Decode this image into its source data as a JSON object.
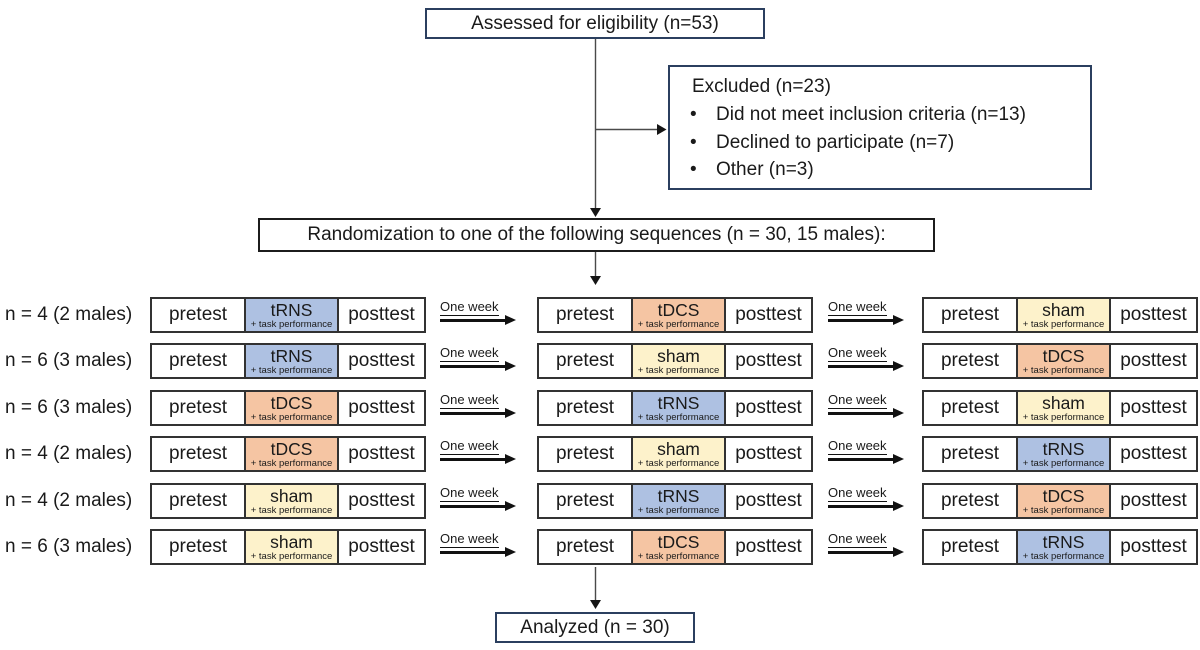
{
  "flow": {
    "assessed": "Assessed for eligibility (n=53)",
    "excluded": {
      "title": "Excluded (n=23)",
      "items": [
        "Did not meet inclusion criteria (n=13)",
        "Declined to participate (n=7)",
        "Other (n=3)"
      ]
    },
    "randomization": "Randomization to one of the following sequences (n = 30, 15 males):",
    "analyzed": "Analyzed (n = 30)"
  },
  "labels": {
    "pretest": "pretest",
    "posttest": "posttest",
    "task_note": "+ task performance",
    "one_week": "One week"
  },
  "conditions": {
    "tRNS": {
      "label": "tRNS",
      "color": "#aec1e2"
    },
    "tDCS": {
      "label": "tDCS",
      "color": "#f5c5a3"
    },
    "sham": {
      "label": "sham",
      "color": "#fdf2cb"
    }
  },
  "sequences": [
    {
      "group": "n = 4 (2 males)",
      "order": [
        "tRNS",
        "tDCS",
        "sham"
      ]
    },
    {
      "group": "n = 6 (3 males)",
      "order": [
        "tRNS",
        "sham",
        "tDCS"
      ]
    },
    {
      "group": "n = 6 (3 males)",
      "order": [
        "tDCS",
        "tRNS",
        "sham"
      ]
    },
    {
      "group": "n = 4 (2 males)",
      "order": [
        "tDCS",
        "sham",
        "tRNS"
      ]
    },
    {
      "group": "n = 4 (2 males)",
      "order": [
        "sham",
        "tRNS",
        "tDCS"
      ]
    },
    {
      "group": "n = 6 (3 males)",
      "order": [
        "sham",
        "tDCS",
        "tRNS"
      ]
    }
  ],
  "colors": {
    "box_border_navy": "#2b3f5f",
    "box_border_black": "#1c1c1c",
    "table_border": "#323232",
    "connector_line": "#4a4a4a",
    "arrowhead": "#151515"
  }
}
